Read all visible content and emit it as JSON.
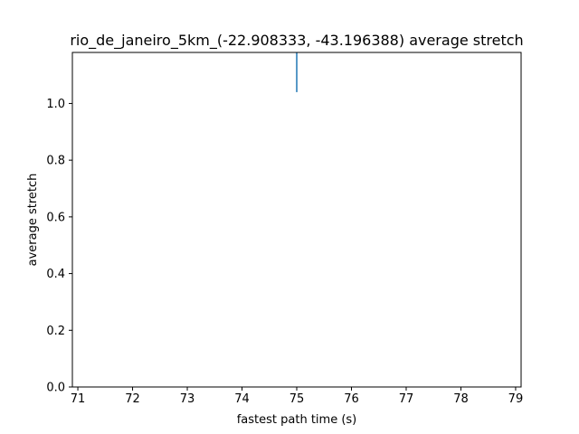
{
  "chart_data": {
    "type": "line",
    "title": "rio_de_janeiro_5km_(-22.908333, -43.196388) average stretch",
    "xlabel": "fastest path time (s)",
    "ylabel": "average stretch",
    "xlim": [
      70.9,
      79.1
    ],
    "ylim": [
      0.0,
      1.18
    ],
    "xticks": [
      71,
      72,
      73,
      74,
      75,
      76,
      77,
      78,
      79
    ],
    "yticks": [
      0.0,
      0.2,
      0.4,
      0.6,
      0.8,
      1.0
    ],
    "xtick_labels": [
      "71",
      "72",
      "73",
      "74",
      "75",
      "76",
      "77",
      "78",
      "79"
    ],
    "ytick_labels": [
      "0.0",
      "0.2",
      "0.4",
      "0.6",
      "0.8",
      "1.0"
    ],
    "grid": false,
    "series": [
      {
        "color": "#1f77b4",
        "x": [
          75,
          75
        ],
        "y": [
          1.04,
          1.18
        ]
      }
    ]
  }
}
